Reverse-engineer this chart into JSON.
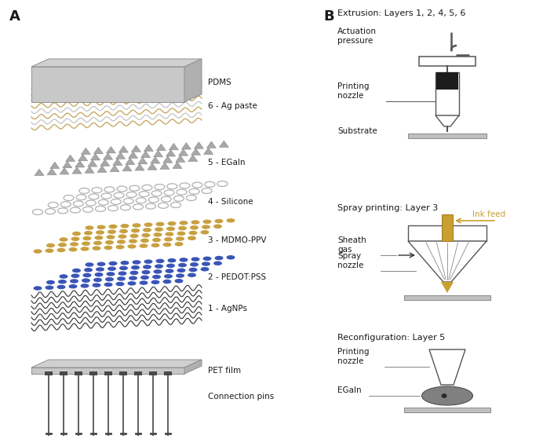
{
  "fig_width": 6.92,
  "fig_height": 5.59,
  "bg_color": "#ffffff",
  "panel_A_label": "A",
  "panel_B_label": "B",
  "layer_labels": [
    "PDMS",
    "6 - Ag paste",
    "5 - EGaIn",
    "4 - Silicone",
    "3 - MDMO-PPV",
    "2 - PEDOT:PSS",
    "1 - AgNPs",
    "PET film",
    "Connection pins"
  ],
  "extrusion_title": "Extrusion: Layers 1, 2, 4, 5, 6",
  "extrusion_labels": [
    "Actuation\npressure",
    "Printing\nnozzle",
    "Substrate"
  ],
  "spray_title": "Spray printing: Layer 3",
  "spray_labels": [
    "Sheath\ngas",
    "Ink feed",
    "Spray\nnozzle"
  ],
  "reconfig_title": "Reconfiguration: Layer 5",
  "reconfig_labels": [
    "Printing\nnozzle",
    "EGaIn"
  ],
  "colors": {
    "pdms_top": "#d0d0d0",
    "pdms_side": "#b8b8b8",
    "pdms_edge": "#909090",
    "ag_paste_line": "#c8aa64",
    "ag_paste_line2": "#c8c8c8",
    "egain_dot": "#a8a8a8",
    "silicone_ring": "#b0b0b0",
    "mdmo_dot": "#c8a040",
    "pedot_dot": "#3a55b8",
    "agnps_line": "#383838",
    "pet_film": "#d0d0d0",
    "pet_side": "#b0b0b0",
    "pet_edge": "#909090",
    "pin_color": "#606060",
    "pin_cap": "#484848",
    "ink_feed_color": "#c8a030",
    "egain_blob": "#808080",
    "diagram_line": "#555555",
    "substrate_color": "#c0c0c0",
    "text_color": "#1a1a1a",
    "arrow_color": "#333333"
  }
}
